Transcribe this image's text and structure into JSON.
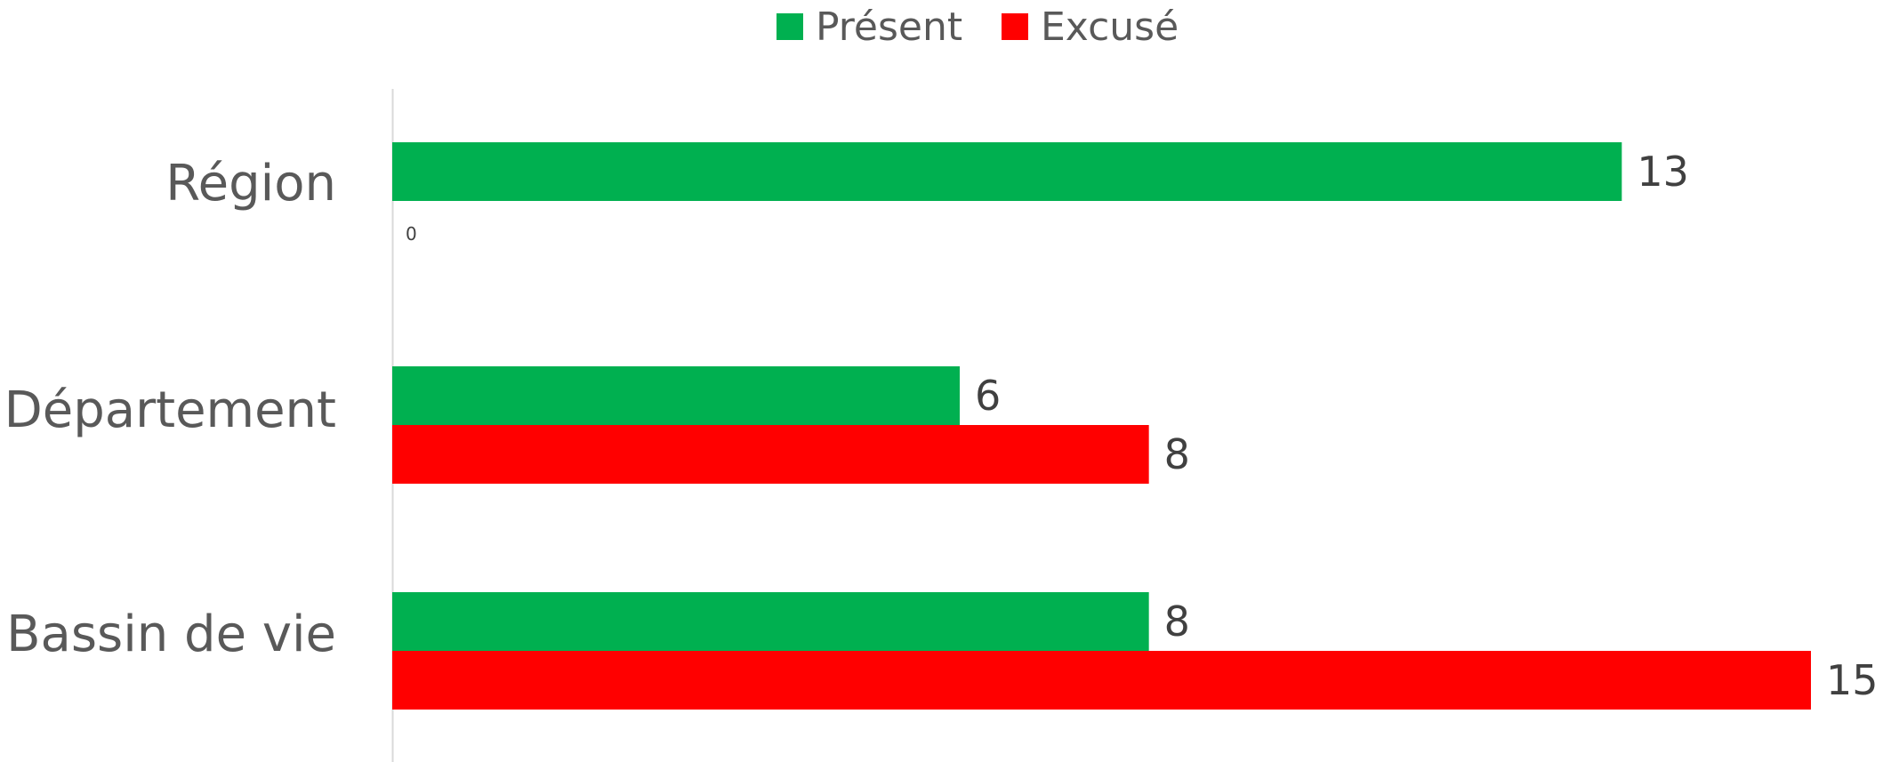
{
  "chart_data": {
    "type": "bar",
    "orientation": "horizontal",
    "categories": [
      "Région",
      "Département",
      "Bassin de vie"
    ],
    "series": [
      {
        "name": "Présent",
        "color": "#00B050",
        "values": [
          13,
          6,
          8
        ]
      },
      {
        "name": "Excusé",
        "color": "#FF0000",
        "values": [
          0,
          8,
          15
        ]
      }
    ],
    "xlim": [
      0,
      15
    ],
    "grid": false,
    "legend": "top-center",
    "data_labels": true
  }
}
